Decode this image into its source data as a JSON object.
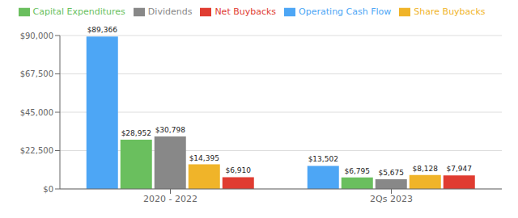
{
  "chart_data": {
    "type": "bar",
    "categories": [
      "2020 - 2022",
      "2Qs 2023"
    ],
    "series": [
      {
        "name": "Operating Cash Flow",
        "color": "#4da6f5",
        "values": [
          89366,
          13502
        ],
        "value_labels": [
          "$89,366",
          "$13,502"
        ]
      },
      {
        "name": "Capital Expenditures",
        "color": "#6abf5e",
        "values": [
          28952,
          6795
        ],
        "value_labels": [
          "$28,952",
          "$6,795"
        ]
      },
      {
        "name": "Dividends",
        "color": "#888888",
        "values": [
          30798,
          5675
        ],
        "value_labels": [
          "$30,798",
          "$5,675"
        ]
      },
      {
        "name": "Share Buybacks",
        "color": "#f0b429",
        "values": [
          14395,
          8128
        ],
        "value_labels": [
          "$14,395",
          "$8,128"
        ]
      },
      {
        "name": "Net Buybacks",
        "color": "#e03c31",
        "values": [
          6910,
          7947
        ],
        "value_labels": [
          "$6,910",
          "$7,947"
        ]
      }
    ],
    "ylim": [
      0,
      90000
    ],
    "yticks": [
      {
        "value": 0,
        "label": "$0"
      },
      {
        "value": 22500,
        "label": "$22,500"
      },
      {
        "value": 45000,
        "label": "$45,000"
      },
      {
        "value": 67500,
        "label": "$67,500"
      },
      {
        "value": 90000,
        "label": "$90,000"
      }
    ],
    "grid": true,
    "legend": "top",
    "data_labels": true
  }
}
